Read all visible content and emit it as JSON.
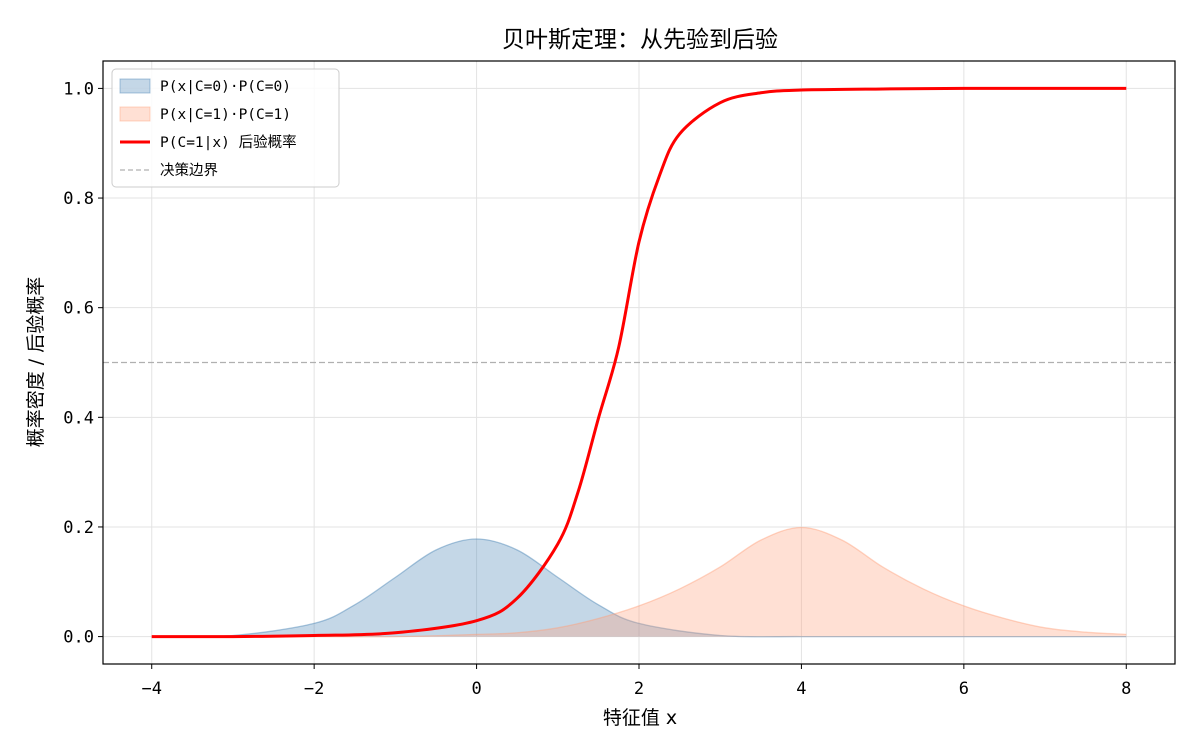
{
  "chart_data": {
    "type": "area",
    "title": "贝叶斯定理：从先验到后验",
    "xlabel": "特征值 x",
    "ylabel": "概率密度 / 后验概率",
    "xlim": [
      -4.6,
      8.6
    ],
    "ylim": [
      -0.05,
      1.05
    ],
    "x_ticks": [
      -4,
      -2,
      0,
      2,
      4,
      6,
      8
    ],
    "y_ticks": [
      0.0,
      0.2,
      0.4,
      0.6,
      0.8,
      1.0
    ],
    "x_tick_labels": [
      "−4",
      "−2",
      "0",
      "2",
      "4",
      "6",
      "8"
    ],
    "y_tick_labels": [
      "0.0",
      "0.2",
      "0.4",
      "0.6",
      "0.8",
      "1.0"
    ],
    "grid": true,
    "legend_position": "top-left",
    "x_range": [
      -4,
      8
    ],
    "series": [
      {
        "name": "P(x|C=0)·P(C=0)",
        "kind": "fill",
        "color": "#4682b4",
        "x": [
          -4,
          -3,
          -2,
          -1.5,
          -1,
          -0.5,
          0,
          0.5,
          1,
          1.5,
          2,
          3,
          4,
          5,
          6,
          7,
          8
        ],
        "values": [
          0.0,
          0.002,
          0.024,
          0.058,
          0.108,
          0.158,
          0.178,
          0.158,
          0.108,
          0.058,
          0.024,
          0.002,
          0.0,
          0.0,
          0.0,
          0.0,
          0.0
        ]
      },
      {
        "name": "P(x|C=1)·P(C=1)",
        "kind": "fill",
        "color": "#ffa07a",
        "x": [
          -4,
          -2,
          -1,
          0,
          0.5,
          1,
          1.5,
          2,
          2.5,
          3,
          3.5,
          4,
          4.5,
          5,
          5.5,
          6,
          6.5,
          7,
          7.5,
          8
        ],
        "values": [
          0.0,
          0.0,
          0.0,
          0.004,
          0.007,
          0.016,
          0.033,
          0.056,
          0.087,
          0.127,
          0.176,
          0.199,
          0.176,
          0.127,
          0.087,
          0.056,
          0.033,
          0.016,
          0.008,
          0.004
        ]
      },
      {
        "name": "P(C=1|x) 后验概率",
        "kind": "line",
        "color": "#ff0000",
        "x": [
          -4,
          -3,
          -2,
          -1,
          0,
          0.5,
          1,
          1.25,
          1.5,
          1.75,
          2,
          2.25,
          2.5,
          3,
          3.5,
          4,
          5,
          6,
          7,
          8
        ],
        "values": [
          0.0,
          0.0,
          0.002,
          0.007,
          0.029,
          0.07,
          0.169,
          0.264,
          0.398,
          0.528,
          0.72,
          0.84,
          0.917,
          0.974,
          0.992,
          0.997,
          0.999,
          1.0,
          1.0,
          1.0
        ]
      }
    ],
    "reference_lines": [
      {
        "name": "决策边界",
        "orientation": "horizontal",
        "y": 0.5,
        "style": "dashed",
        "color": "#b0b0b0"
      }
    ]
  }
}
